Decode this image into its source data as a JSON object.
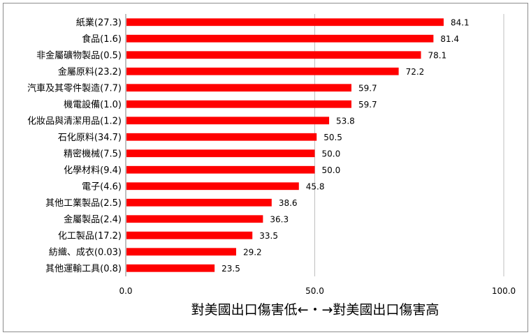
{
  "chart_data": {
    "type": "bar",
    "orientation": "horizontal",
    "categories": [
      "紙業(27.3)",
      "食品(1.6)",
      "非金屬礦物製品(0.5)",
      "金屬原料(23.2)",
      "汽車及其零件製造(7.7)",
      "機電設備(1.0)",
      "化妝品與清潔用品(1.2)",
      "石化原料(34.7)",
      "精密機械(7.5)",
      "化學材料(9.4)",
      "電子(4.6)",
      "其他工業製品(2.5)",
      "金屬製品(2.4)",
      "化工製品(17.2)",
      "紡織、成衣(0.03)",
      "其他運輸工具(0.8)"
    ],
    "values": [
      84.1,
      81.4,
      78.1,
      72.2,
      59.7,
      59.7,
      53.8,
      50.5,
      50.0,
      50.0,
      45.8,
      38.6,
      36.3,
      33.5,
      29.2,
      23.5
    ],
    "value_labels": [
      "84.1",
      "81.4",
      "78.1",
      "72.2",
      "59.7",
      "59.7",
      "53.8",
      "50.5",
      "50.0",
      "50.0",
      "45.8",
      "38.6",
      "36.3",
      "33.5",
      "29.2",
      "23.5"
    ],
    "xlim": [
      0,
      100
    ],
    "xticks": [
      0,
      50,
      100
    ],
    "xtick_labels": [
      "0.0",
      "50.0",
      "100.0"
    ],
    "xlabel": "對美國出口傷害低←・→對美國出口傷害高",
    "grid": "vertical",
    "bar_color": "#ff0000"
  }
}
